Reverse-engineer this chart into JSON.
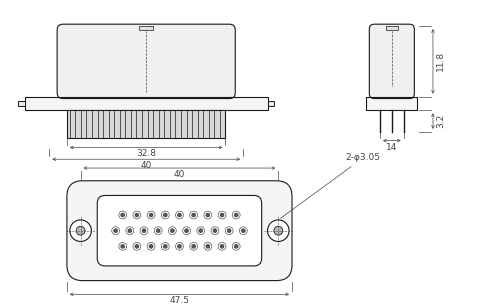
{
  "bg_color": "#ffffff",
  "lc": "#1a1a1a",
  "dc": "#444444",
  "fc_light": "#f2f2f2",
  "fc_body": "#e8e8e8",
  "fc_pins": "#cccccc",
  "fig_width": 4.94,
  "fig_height": 3.07,
  "dpi": 100,
  "annotations": {
    "dim_32_8": "32.8",
    "dim_40": "40",
    "dim_47_5": "47.5",
    "dim_14": "14",
    "dim_11_8": "11.8",
    "dim_3_2": "3.2",
    "dim_hole": "2-φ3.05"
  }
}
